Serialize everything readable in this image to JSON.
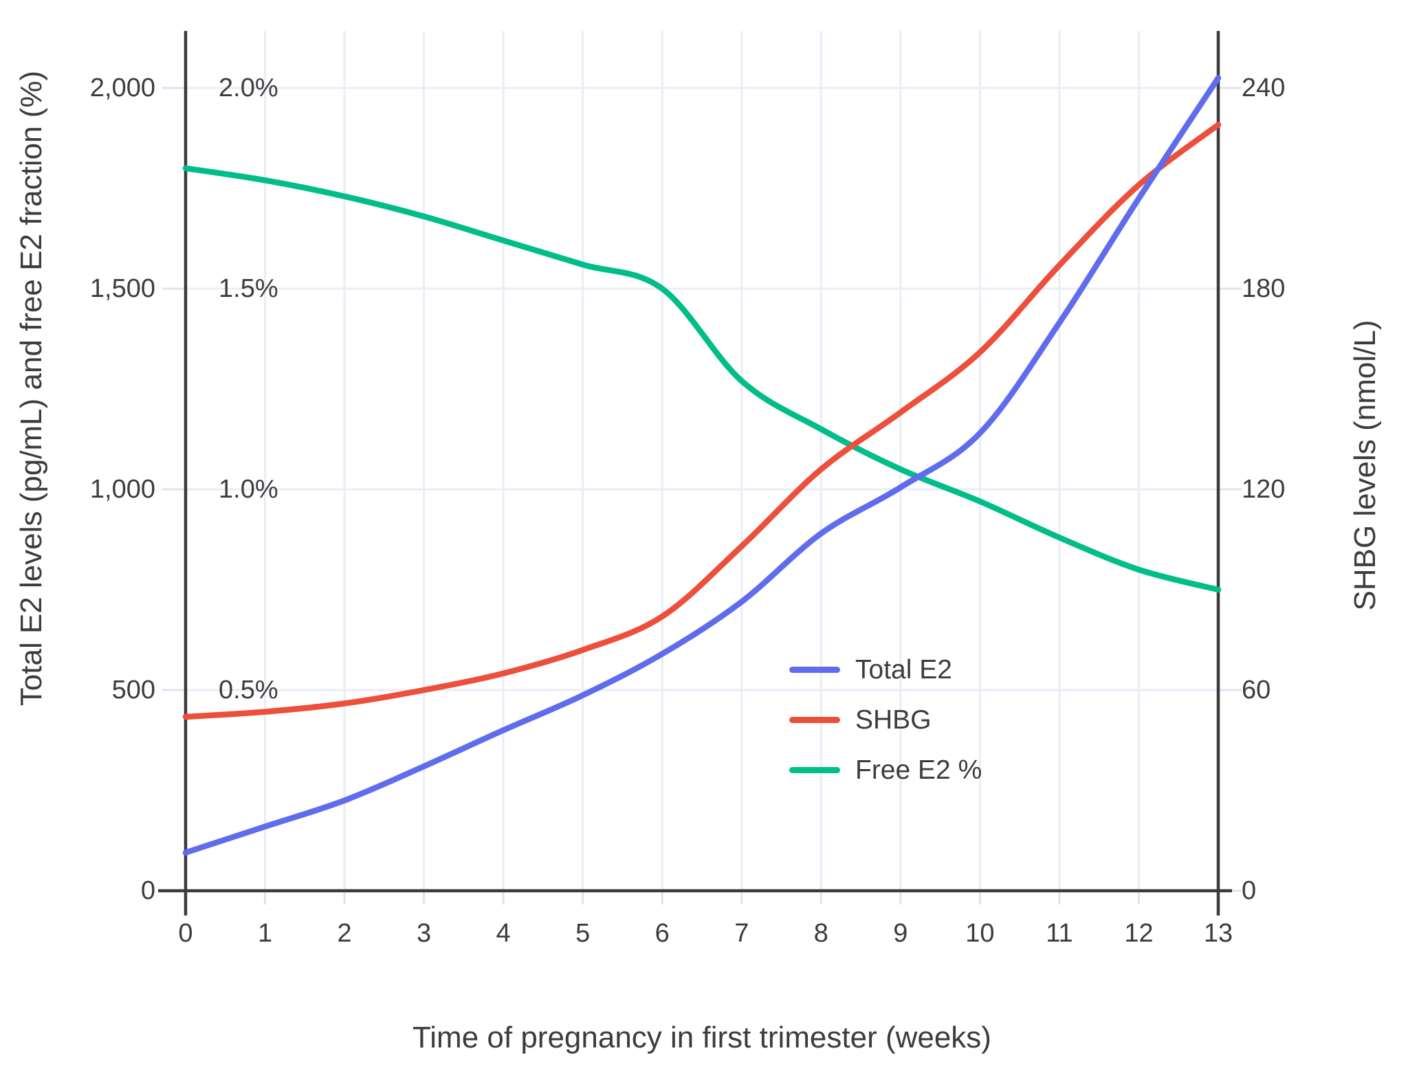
{
  "chart_data": {
    "type": "line",
    "title": "",
    "grid": true,
    "legend_position": "inside-right",
    "x": {
      "label": "Time of pregnancy in first trimester (weeks)",
      "tick_labels": [
        "0",
        "1",
        "2",
        "3",
        "4",
        "5",
        "6",
        "7",
        "8",
        "9",
        "10",
        "11",
        "12",
        "13"
      ],
      "tick_values": [
        0,
        1,
        2,
        3,
        4,
        5,
        6,
        7,
        8,
        9,
        10,
        11,
        12,
        13
      ],
      "range": [
        0,
        13
      ]
    },
    "y_left": {
      "label": "Total E2 levels (pg/mL) and free E2 fraction (%)",
      "tick_labels": [
        "0",
        "500",
        "1,000",
        "1,500",
        "2,000"
      ],
      "tick_values": [
        0,
        500,
        1000,
        1500,
        2000
      ],
      "range": [
        0,
        2140
      ]
    },
    "y_left_percent": {
      "tick_labels": [
        "0.5%",
        "1.0%",
        "1.5%",
        "2.0%"
      ],
      "tick_values": [
        0.5,
        1.0,
        1.5,
        2.0
      ],
      "range": [
        0,
        2.14
      ]
    },
    "y_right": {
      "label": "SHBG levels (nmol/L)",
      "tick_labels": [
        "0",
        "60",
        "120",
        "180",
        "240"
      ],
      "tick_values": [
        0,
        60,
        120,
        180,
        240
      ],
      "range": [
        0,
        257
      ]
    },
    "weeks": [
      0,
      1,
      2,
      3,
      4,
      5,
      6,
      7,
      8,
      9,
      10,
      11,
      12,
      13
    ],
    "series": [
      {
        "name": "Total E2",
        "axis": "left",
        "color": "#5f6cee",
        "values": [
          95,
          160,
          225,
          310,
          400,
          487,
          590,
          720,
          890,
          1005,
          1140,
          1415,
          1725,
          2025
        ]
      },
      {
        "name": "SHBG",
        "axis": "right",
        "color": "#ec4f3b",
        "values": [
          52,
          53.5,
          56,
          60,
          65,
          72,
          82,
          103,
          126,
          143,
          161,
          187,
          211,
          229
        ]
      },
      {
        "name": "Free E2 %",
        "axis": "percent",
        "color": "#00bd8a",
        "values": [
          1.8,
          1.77,
          1.73,
          1.68,
          1.62,
          1.56,
          1.5,
          1.27,
          1.15,
          1.05,
          0.97,
          0.88,
          0.8,
          0.75
        ]
      }
    ],
    "colors": {
      "text": "#3c3c3c",
      "axis_line": "#3a3a3a",
      "gridline": "#e9edf7",
      "tick_stub": "#dde3f0",
      "background": "#ffffff"
    }
  }
}
